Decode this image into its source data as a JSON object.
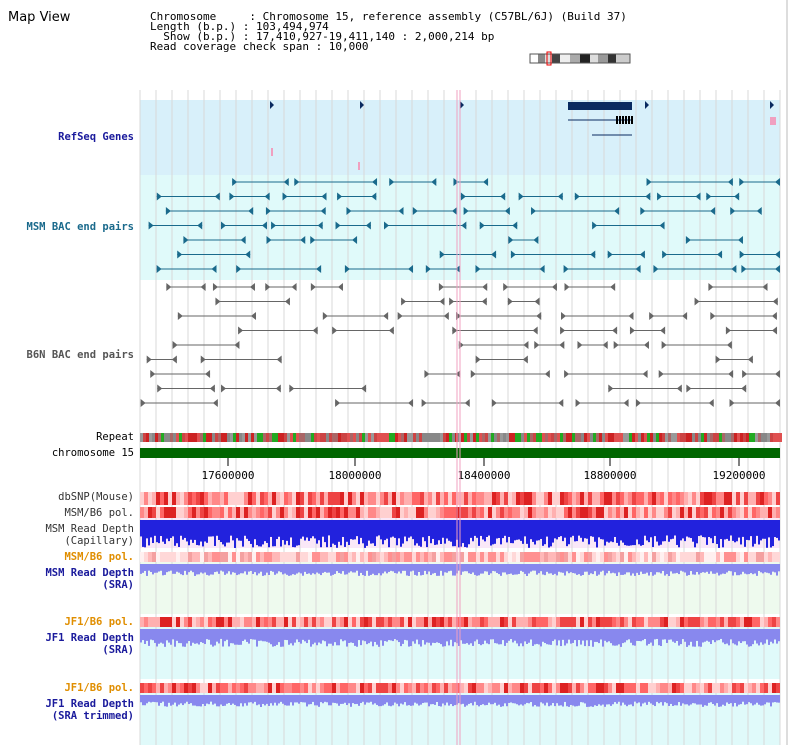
{
  "page": {
    "title": "Map View"
  },
  "info": {
    "chromosome_label": "Chromosome     : Chromosome 15, reference assembly (C57BL/6J) (Build 37)",
    "length_label": "Length (b.p.) : 103,494,974",
    "show_label": "  Show (b.p.) : 17,410,927-19,411,140 : 2,000,214 bp",
    "coverage_label": "Read coverage check span : 10,000"
  },
  "tracks": {
    "refseq": "RefSeq Genes",
    "msm_bac": "MSM BAC end pairs",
    "b6n_bac": "B6N BAC end pairs",
    "repeat": "Repeat",
    "chromosome": "chromosome 15",
    "dbsnp": "dbSNP(Mouse)",
    "msm_b6_pol_1": "MSM/B6 pol.",
    "msm_read_depth_cap_1": "MSM Read Depth",
    "msm_read_depth_cap_2": "(Capillary)",
    "msm_b6_pol_2": "MSM/B6 pol.",
    "msm_read_depth_sra_1": "MSM Read Depth",
    "msm_read_depth_sra_2": "(SRA)",
    "jf1_b6_pol_1": "JF1/B6 pol.",
    "jf1_read_depth_sra_1": "JF1 Read Depth",
    "jf1_read_depth_sra_2": "(SRA)",
    "jf1_b6_pol_2": "JF1/B6 pol.",
    "jf1_read_depth_trim_1": "JF1 Read Depth",
    "jf1_read_depth_trim_2": "(SRA trimmed)"
  },
  "axis": {
    "ticks": [
      "17600000",
      "18000000",
      "18400000",
      "18800000",
      "19200000"
    ]
  },
  "colors": {
    "refseq_bg": "#d8f0fa",
    "msm_bg": "#e0fafa",
    "depth_bg": "#fae8f8",
    "sra_bg": "#eefaee",
    "jf1_bg": "#e0fafa",
    "chromosome_bar": "#006600",
    "gene": "#0a2a60",
    "msm_pair": "#1a6a8c",
    "b6n_pair": "#666666",
    "depth_cap": "#2222dd",
    "depth_sra": "#8888ee"
  }
}
